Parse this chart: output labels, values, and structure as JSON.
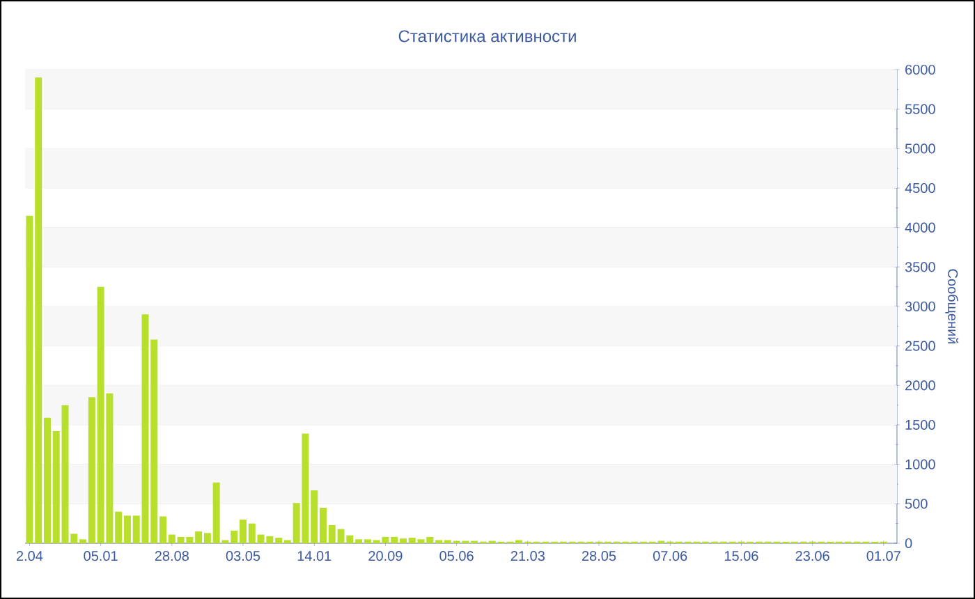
{
  "chart_data": {
    "type": "bar",
    "title": "Статистика активности",
    "ylabel": "Сообщений",
    "categories": [
      "2.04",
      null,
      null,
      null,
      null,
      null,
      null,
      null,
      "05.01",
      null,
      null,
      null,
      null,
      null,
      null,
      null,
      "28.08",
      null,
      null,
      null,
      null,
      null,
      null,
      null,
      "03.05",
      null,
      null,
      null,
      null,
      null,
      null,
      null,
      "14.01",
      null,
      null,
      null,
      null,
      null,
      null,
      null,
      "20.09",
      null,
      null,
      null,
      null,
      null,
      null,
      null,
      "05.06",
      null,
      null,
      null,
      null,
      null,
      null,
      null,
      "21.03",
      null,
      null,
      null,
      null,
      null,
      null,
      null,
      "28.05",
      null,
      null,
      null,
      null,
      null,
      null,
      null,
      "07.06",
      null,
      null,
      null,
      null,
      null,
      null,
      null,
      "15.06",
      null,
      null,
      null,
      null,
      null,
      null,
      null,
      "23.06",
      null,
      null,
      null,
      null,
      null,
      null,
      null,
      "01.07"
    ],
    "values": [
      4150,
      5900,
      1590,
      1420,
      1750,
      120,
      50,
      1850,
      3250,
      1900,
      400,
      350,
      350,
      2900,
      2580,
      340,
      110,
      80,
      80,
      150,
      130,
      770,
      40,
      160,
      300,
      250,
      110,
      90,
      70,
      40,
      510,
      1390,
      670,
      450,
      230,
      180,
      100,
      50,
      50,
      40,
      80,
      80,
      60,
      70,
      50,
      80,
      40,
      40,
      30,
      30,
      30,
      20,
      30,
      20,
      20,
      40,
      20,
      20,
      20,
      20,
      20,
      20,
      20,
      20,
      20,
      20,
      20,
      20,
      20,
      20,
      20,
      30,
      20,
      20,
      20,
      20,
      20,
      20,
      20,
      20,
      20,
      20,
      20,
      20,
      20,
      20,
      20,
      20,
      20,
      20,
      20,
      20,
      20,
      20,
      20,
      20,
      20
    ],
    "color": "#b8df2c",
    "ylim": [
      0,
      6000
    ],
    "yticks": [
      0,
      500,
      1000,
      1500,
      2000,
      2500,
      3000,
      3500,
      4000,
      4500,
      5000,
      5500,
      6000
    ],
    "grid": "y"
  }
}
